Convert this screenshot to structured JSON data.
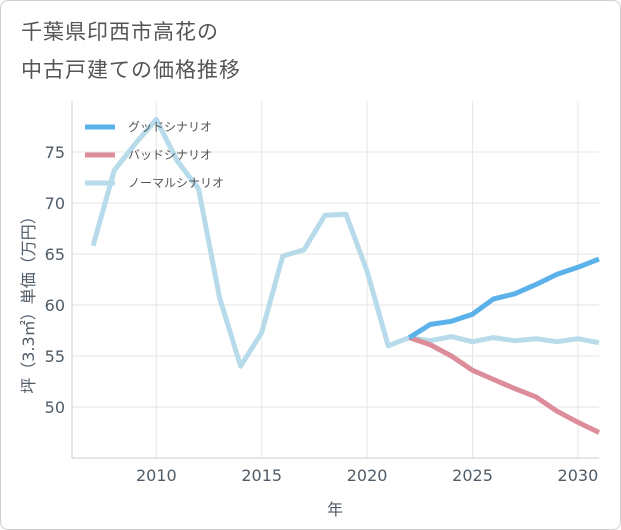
{
  "title_lines": [
    "千葉県印西市高花の",
    "中古戸建ての価格推移"
  ],
  "chart_data": {
    "type": "line",
    "title": "千葉県印西市高花の中古戸建ての価格推移",
    "xlabel": "年",
    "ylabel": "坪（3.3㎡）単価（万円）",
    "xlim": [
      2006,
      2031
    ],
    "ylim": [
      45,
      80
    ],
    "x_ticks": [
      2010,
      2015,
      2020,
      2025,
      2030
    ],
    "y_ticks": [
      50,
      55,
      60,
      65,
      70,
      75
    ],
    "grid": true,
    "legend_position": "top-left",
    "series": [
      {
        "name": "グッドシナリオ",
        "color": "#5bb2eb",
        "x": [
          2022,
          2023,
          2024,
          2025,
          2026,
          2027,
          2028,
          2029,
          2030,
          2031
        ],
        "values": [
          56.8,
          58.1,
          58.4,
          59.1,
          60.6,
          61.1,
          62.0,
          63.0,
          63.7,
          64.5
        ]
      },
      {
        "name": "バッドシナリオ",
        "color": "#dc8d99",
        "x": [
          2022,
          2023,
          2024,
          2025,
          2026,
          2027,
          2028,
          2029,
          2030,
          2031
        ],
        "values": [
          56.8,
          56.1,
          55.0,
          53.6,
          52.7,
          51.8,
          51.0,
          49.6,
          48.5,
          47.5
        ]
      },
      {
        "name": "ノーマルシナリオ",
        "color": "#b7dbea",
        "x": [
          2007,
          2008,
          2009,
          2010,
          2011,
          2012,
          2013,
          2014,
          2015,
          2016,
          2017,
          2018,
          2019,
          2020,
          2021,
          2022,
          2023,
          2024,
          2025,
          2026,
          2027,
          2028,
          2029,
          2030,
          2031
        ],
        "values": [
          65.8,
          73.2,
          75.8,
          78.2,
          74.1,
          71.4,
          60.7,
          54.0,
          57.3,
          64.8,
          65.4,
          68.8,
          68.9,
          63.3,
          56.0,
          56.8,
          56.5,
          56.9,
          56.4,
          56.8,
          56.5,
          56.7,
          56.4,
          56.7,
          56.3
        ]
      }
    ]
  }
}
